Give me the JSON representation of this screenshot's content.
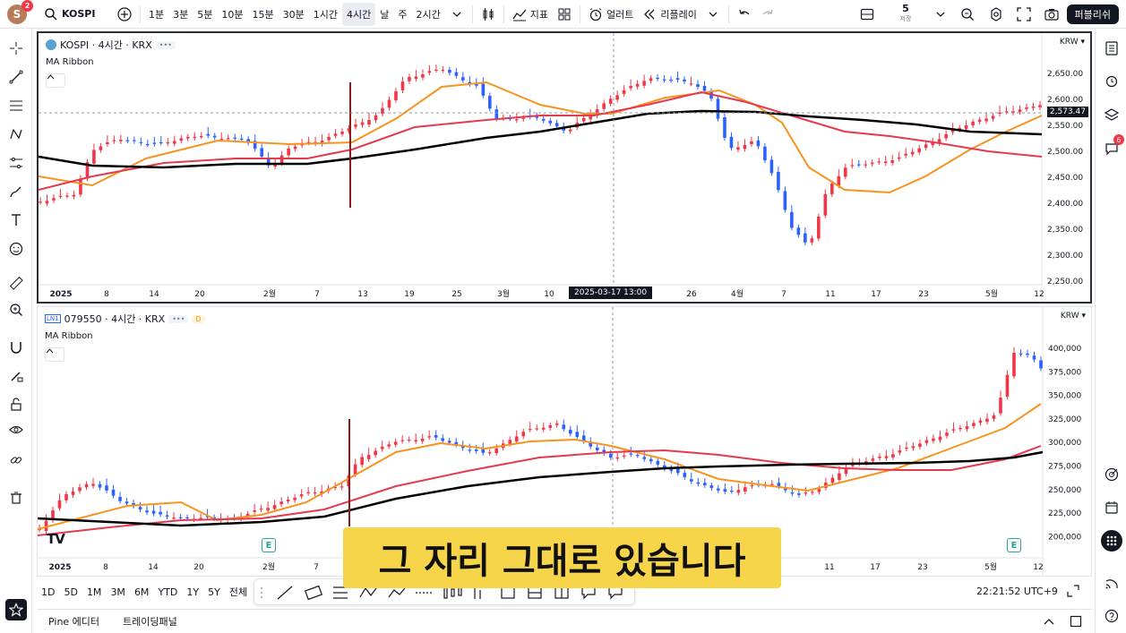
{
  "topbar": {
    "avatar_letter": "S",
    "avatar_badge": "2",
    "symbol": "KOSPI",
    "intervals": [
      "1분",
      "3분",
      "5분",
      "10분",
      "15분",
      "30분",
      "1시간",
      "4시간",
      "날",
      "주",
      "2시간"
    ],
    "active_interval": "4시간",
    "indicators_label": "지표",
    "alerts_label": "얼러트",
    "replay_label": "리플레이",
    "layout_count": "5",
    "layout_save": "저장",
    "publish_label": "퍼블리쉬"
  },
  "pane1": {
    "title": "KOSPI · 4시간 · KRX",
    "indicator": "MA Ribbon",
    "currency": "KRW",
    "price_labels": [
      "2,650.00",
      "2,600.00",
      "2,550.00",
      "2,500.00",
      "2,450.00",
      "2,400.00",
      "2,350.00",
      "2,300.00",
      "2,250.00"
    ],
    "last_price": "2,573.47",
    "time_labels": [
      "2025",
      "8",
      "14",
      "20",
      "2월",
      "7",
      "13",
      "19",
      "25",
      "3월",
      "10",
      "26",
      "4월",
      "7",
      "11",
      "17",
      "23",
      "5월",
      "12"
    ],
    "crosshair_time": "2025-03-17   13:00"
  },
  "pane2": {
    "title": "079550 · 4시간 · KRX",
    "badge": "D",
    "symbol_icon_text": "LN1",
    "indicator": "MA Ribbon",
    "currency": "KRW",
    "price_labels": [
      "400,000",
      "375,000",
      "350,000",
      "325,000",
      "300,000",
      "275,000",
      "250,000",
      "225,000",
      "200,000"
    ],
    "time_labels": [
      "2025",
      "8",
      "14",
      "20",
      "2월",
      "7",
      "11",
      "17",
      "23",
      "5월",
      "12"
    ],
    "earnings_mark": "E"
  },
  "rangebar": {
    "ranges": [
      "1D",
      "5D",
      "1M",
      "3M",
      "6M",
      "YTD",
      "1Y",
      "5Y",
      "전체"
    ],
    "clock": "22:21:52 UTC+9"
  },
  "footer": {
    "pine": "Pine 에디터",
    "panel": "트레이딩패널"
  },
  "caption": "그 자리 그대로 있습니다",
  "right_badge": "6",
  "colors": {
    "up": "#f23645",
    "down": "#2962ff",
    "ma_fast": "#f7931e",
    "ma_mid": "#e53950",
    "ma_slow": "#000000"
  }
}
